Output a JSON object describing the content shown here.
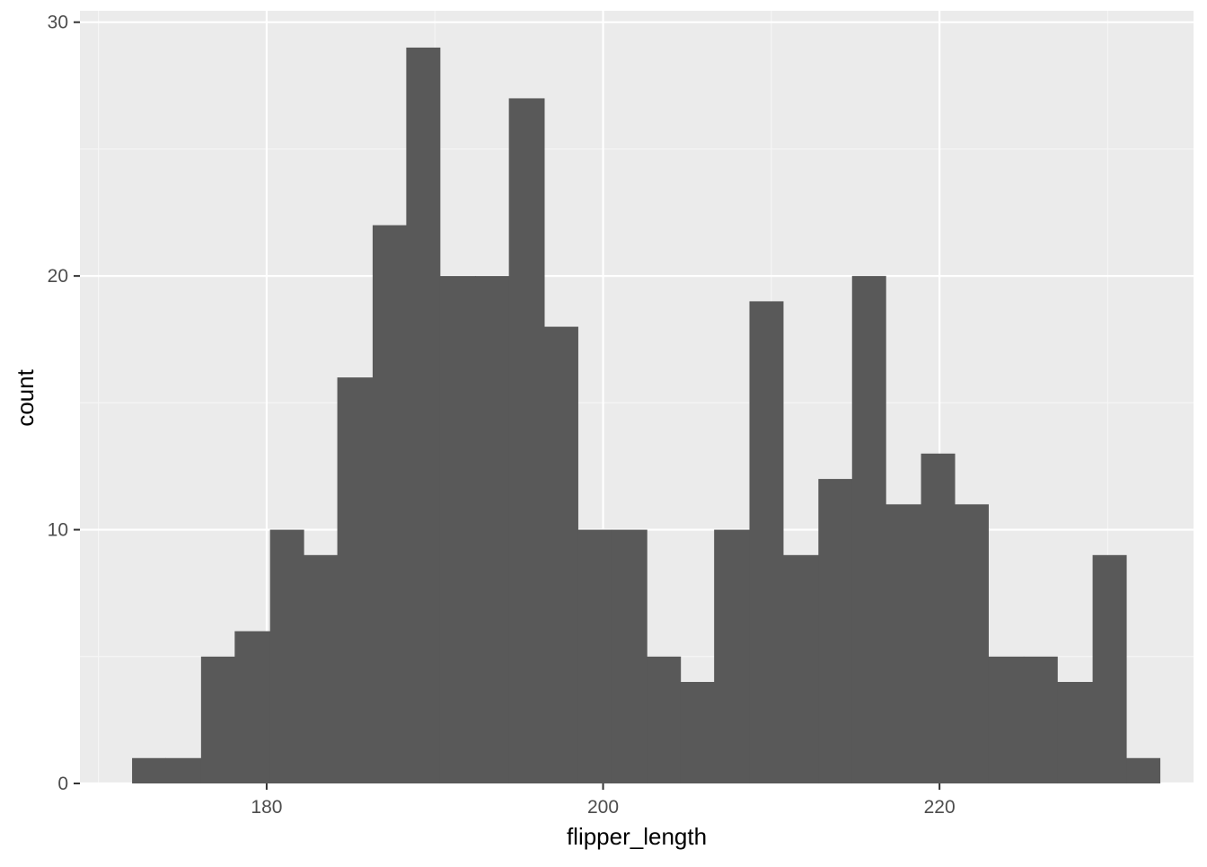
{
  "chart_data": {
    "type": "bar",
    "subtype": "histogram",
    "title": "",
    "xlabel": "flipper_length",
    "ylabel": "count",
    "xlim": [
      168.9,
      235.1
    ],
    "ylim": [
      0,
      30.45
    ],
    "x_ticks": [
      180,
      200,
      220
    ],
    "x_tick_labels": [
      "180",
      "200",
      "220"
    ],
    "y_ticks": [
      0,
      10,
      20,
      30
    ],
    "y_tick_labels": [
      "0",
      "10",
      "20",
      "30"
    ],
    "grid": true,
    "legend": "none",
    "bin_width": 2.034,
    "bins": [
      {
        "x0": 172.0,
        "x1": 174.0,
        "count": 1
      },
      {
        "x0": 174.0,
        "x1": 176.1,
        "count": 1
      },
      {
        "x0": 176.1,
        "x1": 178.1,
        "count": 5
      },
      {
        "x0": 178.1,
        "x1": 180.2,
        "count": 6
      },
      {
        "x0": 180.2,
        "x1": 182.2,
        "count": 10
      },
      {
        "x0": 182.2,
        "x1": 184.2,
        "count": 9
      },
      {
        "x0": 184.2,
        "x1": 186.3,
        "count": 16
      },
      {
        "x0": 186.3,
        "x1": 188.3,
        "count": 22
      },
      {
        "x0": 188.3,
        "x1": 190.3,
        "count": 29
      },
      {
        "x0": 190.3,
        "x1": 192.4,
        "count": 20
      },
      {
        "x0": 192.4,
        "x1": 194.4,
        "count": 20
      },
      {
        "x0": 194.4,
        "x1": 196.5,
        "count": 27
      },
      {
        "x0": 196.5,
        "x1": 198.5,
        "count": 18
      },
      {
        "x0": 198.5,
        "x1": 200.5,
        "count": 10
      },
      {
        "x0": 200.5,
        "x1": 202.6,
        "count": 10
      },
      {
        "x0": 202.6,
        "x1": 204.6,
        "count": 5
      },
      {
        "x0": 204.6,
        "x1": 206.6,
        "count": 4
      },
      {
        "x0": 206.6,
        "x1": 208.7,
        "count": 10
      },
      {
        "x0": 208.7,
        "x1": 210.7,
        "count": 19
      },
      {
        "x0": 210.7,
        "x1": 212.8,
        "count": 9
      },
      {
        "x0": 212.8,
        "x1": 214.8,
        "count": 12
      },
      {
        "x0": 214.8,
        "x1": 216.8,
        "count": 20
      },
      {
        "x0": 216.8,
        "x1": 218.9,
        "count": 11
      },
      {
        "x0": 218.9,
        "x1": 220.9,
        "count": 13
      },
      {
        "x0": 220.9,
        "x1": 222.9,
        "count": 11
      },
      {
        "x0": 222.9,
        "x1": 225.0,
        "count": 5
      },
      {
        "x0": 225.0,
        "x1": 227.0,
        "count": 5
      },
      {
        "x0": 227.0,
        "x1": 229.1,
        "count": 4
      },
      {
        "x0": 229.1,
        "x1": 231.1,
        "count": 9
      },
      {
        "x0": 231.1,
        "x1": 233.1,
        "count": 1
      }
    ],
    "colors": {
      "panel_background": "#ebebeb",
      "grid_major": "#ffffff",
      "grid_minor": "#f5f5f5",
      "bar_fill": "#595959",
      "tick_mark": "#333333",
      "tick_label": "#4d4d4d",
      "axis_title": "#000000"
    }
  }
}
